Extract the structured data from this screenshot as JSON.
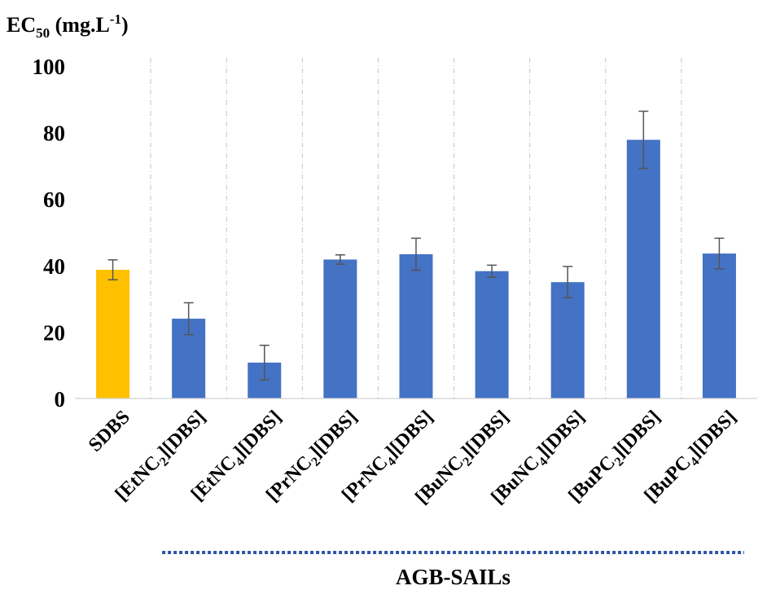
{
  "chart_data": {
    "type": "bar",
    "ylabel": {
      "main": "EC",
      "subscript": "50",
      "unit_prefix": " (mg.L",
      "superscript": "-1",
      "unit_suffix": ")"
    },
    "ylim": [
      0,
      100
    ],
    "yticks": [
      "0",
      "20",
      "40",
      "60",
      "80",
      "100"
    ],
    "grid": "vertical dash-dot separators",
    "categories": [
      {
        "prefix": "SDBS",
        "sub": "",
        "suffix": ""
      },
      {
        "prefix": "[EtNC",
        "sub": "2",
        "suffix": "][DBS]"
      },
      {
        "prefix": "[EtNC",
        "sub": "4",
        "suffix": "][DBS]"
      },
      {
        "prefix": "[PrNC",
        "sub": "2",
        "suffix": "][DBS]"
      },
      {
        "prefix": "[PrNC",
        "sub": "4",
        "suffix": "][DBS]"
      },
      {
        "prefix": "[BuNC",
        "sub": "2",
        "suffix": "][DBS]"
      },
      {
        "prefix": "[BuNC",
        "sub": "4",
        "suffix": "][DBS]"
      },
      {
        "prefix": "[BuPC",
        "sub": "2",
        "suffix": "][DBS]"
      },
      {
        "prefix": "[BuPC",
        "sub": "4",
        "suffix": "][DBS]"
      }
    ],
    "values": [
      38.7,
      24.0,
      10.8,
      41.8,
      43.4,
      38.3,
      35.0,
      77.8,
      43.6
    ],
    "errors": [
      3.0,
      4.8,
      5.2,
      1.4,
      4.8,
      1.8,
      4.7,
      8.6,
      4.6
    ],
    "bar_colors": [
      "#FFC000",
      "#4472C4",
      "#4472C4",
      "#4472C4",
      "#4472C4",
      "#4472C4",
      "#4472C4",
      "#4472C4",
      "#4472C4"
    ],
    "group": {
      "label": "AGB-SAILs",
      "from_index": 1,
      "to_index": 8,
      "line_color": "#2F55A4"
    }
  }
}
